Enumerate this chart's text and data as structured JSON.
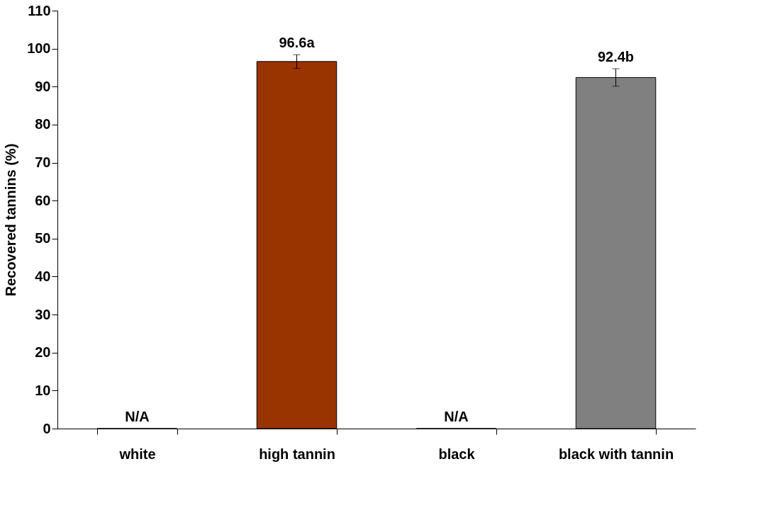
{
  "chart_data": {
    "type": "bar",
    "ylabel": "Recovered tannins (%)",
    "categories": [
      "white",
      "high tannin",
      "black",
      "black with tannin"
    ],
    "values": [
      0,
      96.6,
      0,
      92.4
    ],
    "colors": [
      "#000000",
      "#993300",
      "#000000",
      "#808080"
    ],
    "errors": [
      null,
      1.8,
      null,
      2.3
    ],
    "value_labels": [
      "N/A",
      "96.6a",
      "N/A",
      "92.4b"
    ],
    "ylim": [
      0,
      110
    ],
    "yticks": [
      0,
      10,
      20,
      30,
      40,
      50,
      60,
      70,
      80,
      90,
      100,
      110
    ],
    "grid": false
  }
}
